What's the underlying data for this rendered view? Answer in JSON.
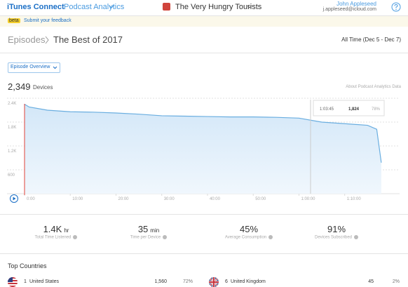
{
  "header": {
    "app": "iTunes Connect",
    "section": "Podcast Analytics",
    "podcast": "The Very Hungry Tourists",
    "user_name": "John Appleseed",
    "user_email": "j.appleseed@icloud.com"
  },
  "beta": {
    "badge": "beta",
    "link": "Submit your feedback"
  },
  "breadcrumb": {
    "parent": "Episodes",
    "current": "The Best of 2017"
  },
  "date_range": "All Time (Dec 5 - Dec 7)",
  "dropdown": "Episode Overview",
  "devices": {
    "value": "2,349",
    "label": "Devices"
  },
  "about_link": "About Podcast Analytics Data",
  "chart": {
    "type": "area",
    "color": "#6aaee0",
    "x": [
      0,
      1,
      5,
      10,
      15,
      20,
      25,
      30,
      35,
      40,
      45,
      50,
      55,
      60,
      63.75,
      65,
      70,
      75,
      77,
      78
    ],
    "values": [
      2250,
      2180,
      2100,
      2060,
      2050,
      2030,
      2000,
      1960,
      1950,
      1940,
      1930,
      1930,
      1920,
      1900,
      1824,
      1800,
      1760,
      1720,
      1620,
      780
    ],
    "xlim": [
      0,
      82
    ],
    "ylim": [
      0,
      2400
    ],
    "xticks": [
      {
        "value": 0,
        "label": "0:00"
      },
      {
        "value": 10,
        "label": "10:00"
      },
      {
        "value": 20,
        "label": "20:00"
      },
      {
        "value": 30,
        "label": "30:00"
      },
      {
        "value": 40,
        "label": "40:00"
      },
      {
        "value": 50,
        "label": "50:00"
      },
      {
        "value": 60,
        "label": "1:00:00"
      },
      {
        "value": 70,
        "label": "1:10:00"
      }
    ],
    "yticks": [
      600,
      {
        "value": 1200,
        "label": "1.2K"
      },
      {
        "value": 1800,
        "label": "1.8K"
      },
      {
        "value": 2400,
        "label": "2.4K"
      }
    ],
    "grid": true,
    "tooltip": {
      "time": "1:03:45",
      "devices": "1,824",
      "percent": "78%"
    }
  },
  "stats": [
    {
      "value": "1.4K",
      "unit": "hr",
      "label": "Total Time Listened"
    },
    {
      "value": "35",
      "unit": "min",
      "label": "Time per Device"
    },
    {
      "value": "45%",
      "label": "Average Consumption"
    },
    {
      "value": "91%",
      "label": "Devices Subscribed"
    }
  ],
  "top_countries": {
    "title": "Top Countries",
    "rows": [
      {
        "rank": "1",
        "name": "United States",
        "devices": "1,560",
        "share": "72%"
      },
      {
        "rank": "6",
        "name": "United Kingdom",
        "devices": "45",
        "share": "2%"
      }
    ]
  }
}
